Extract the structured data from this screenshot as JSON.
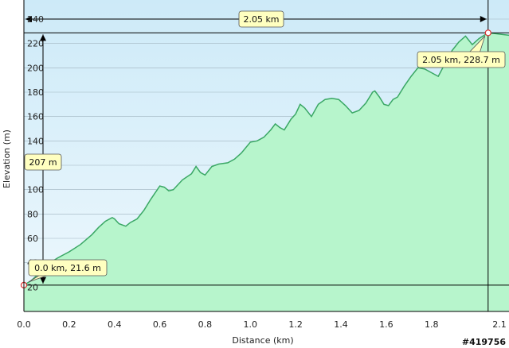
{
  "chart_data": {
    "type": "area",
    "xlabel": "Distance   (km)",
    "ylabel": "Elevation  (m)",
    "xlim": [
      0,
      2.1
    ],
    "ylim": [
      0,
      250
    ],
    "x_ticks": [
      "0.0",
      "0.2",
      "0.4",
      "0.6",
      "0.8",
      "1.0",
      "1.2",
      "1.4",
      "1.6",
      "1.8",
      "2.1"
    ],
    "x_tick_values": [
      0,
      0.2,
      0.4,
      0.6,
      0.8,
      1.0,
      1.2,
      1.4,
      1.6,
      1.8,
      2.1
    ],
    "y_ticks": [
      "20",
      "40",
      "60",
      "80",
      "100",
      "140",
      "160",
      "180",
      "200",
      "220",
      "240"
    ],
    "y_tick_values": [
      20,
      40,
      60,
      80,
      100,
      140,
      160,
      180,
      200,
      220,
      240
    ],
    "grid": true,
    "colors": {
      "fill": "#b7f5cc",
      "line": "#3aa765",
      "sky_top": "#cdeaf8",
      "sky_bottom": "#eaf6fc"
    },
    "series": [
      {
        "x": [
          0.0,
          0.03,
          0.06,
          0.1,
          0.15,
          0.2,
          0.25,
          0.3,
          0.33,
          0.36,
          0.39,
          0.4,
          0.42,
          0.45,
          0.47,
          0.5,
          0.53,
          0.56,
          0.6,
          0.62,
          0.64,
          0.66,
          0.7,
          0.74,
          0.76,
          0.78,
          0.8,
          0.83,
          0.86,
          0.9,
          0.93,
          0.96,
          1.0,
          1.03,
          1.06,
          1.09,
          1.11,
          1.13,
          1.15,
          1.18,
          1.2,
          1.22,
          1.24,
          1.27,
          1.3,
          1.33,
          1.36,
          1.39,
          1.42,
          1.45,
          1.48,
          1.51,
          1.54,
          1.55,
          1.57,
          1.59,
          1.61,
          1.63,
          1.65,
          1.68,
          1.71,
          1.74,
          1.77,
          1.8,
          1.83,
          1.85,
          1.87,
          1.89,
          1.92,
          1.95,
          1.98,
          2.01,
          2.05
        ],
        "y": [
          21.6,
          25,
          30,
          38,
          44,
          49,
          55,
          63,
          69,
          74,
          77,
          76,
          72,
          70,
          73,
          76,
          83,
          92,
          103,
          102,
          99,
          100,
          108,
          113,
          119,
          114,
          112,
          119,
          121,
          122,
          125,
          130,
          139,
          140,
          143,
          149,
          154,
          151,
          149,
          158,
          162,
          170,
          167,
          160,
          170,
          174,
          175,
          174,
          169,
          163,
          165,
          171,
          180,
          181,
          176,
          170,
          169,
          174,
          176,
          185,
          193,
          200,
          199,
          196,
          193,
          200,
          205,
          214,
          221,
          226,
          219,
          224,
          228.7
        ]
      }
    ],
    "annotations": {
      "distance": "2.05 km",
      "elevation_gain": "207 m",
      "start_point": "0.0 km, 21.6 m",
      "end_point": "2.05 km, 228.7 m",
      "start_x": 0.0,
      "start_y": 21.6,
      "end_x": 2.05,
      "end_y": 228.7
    }
  },
  "watermark": "#419756"
}
